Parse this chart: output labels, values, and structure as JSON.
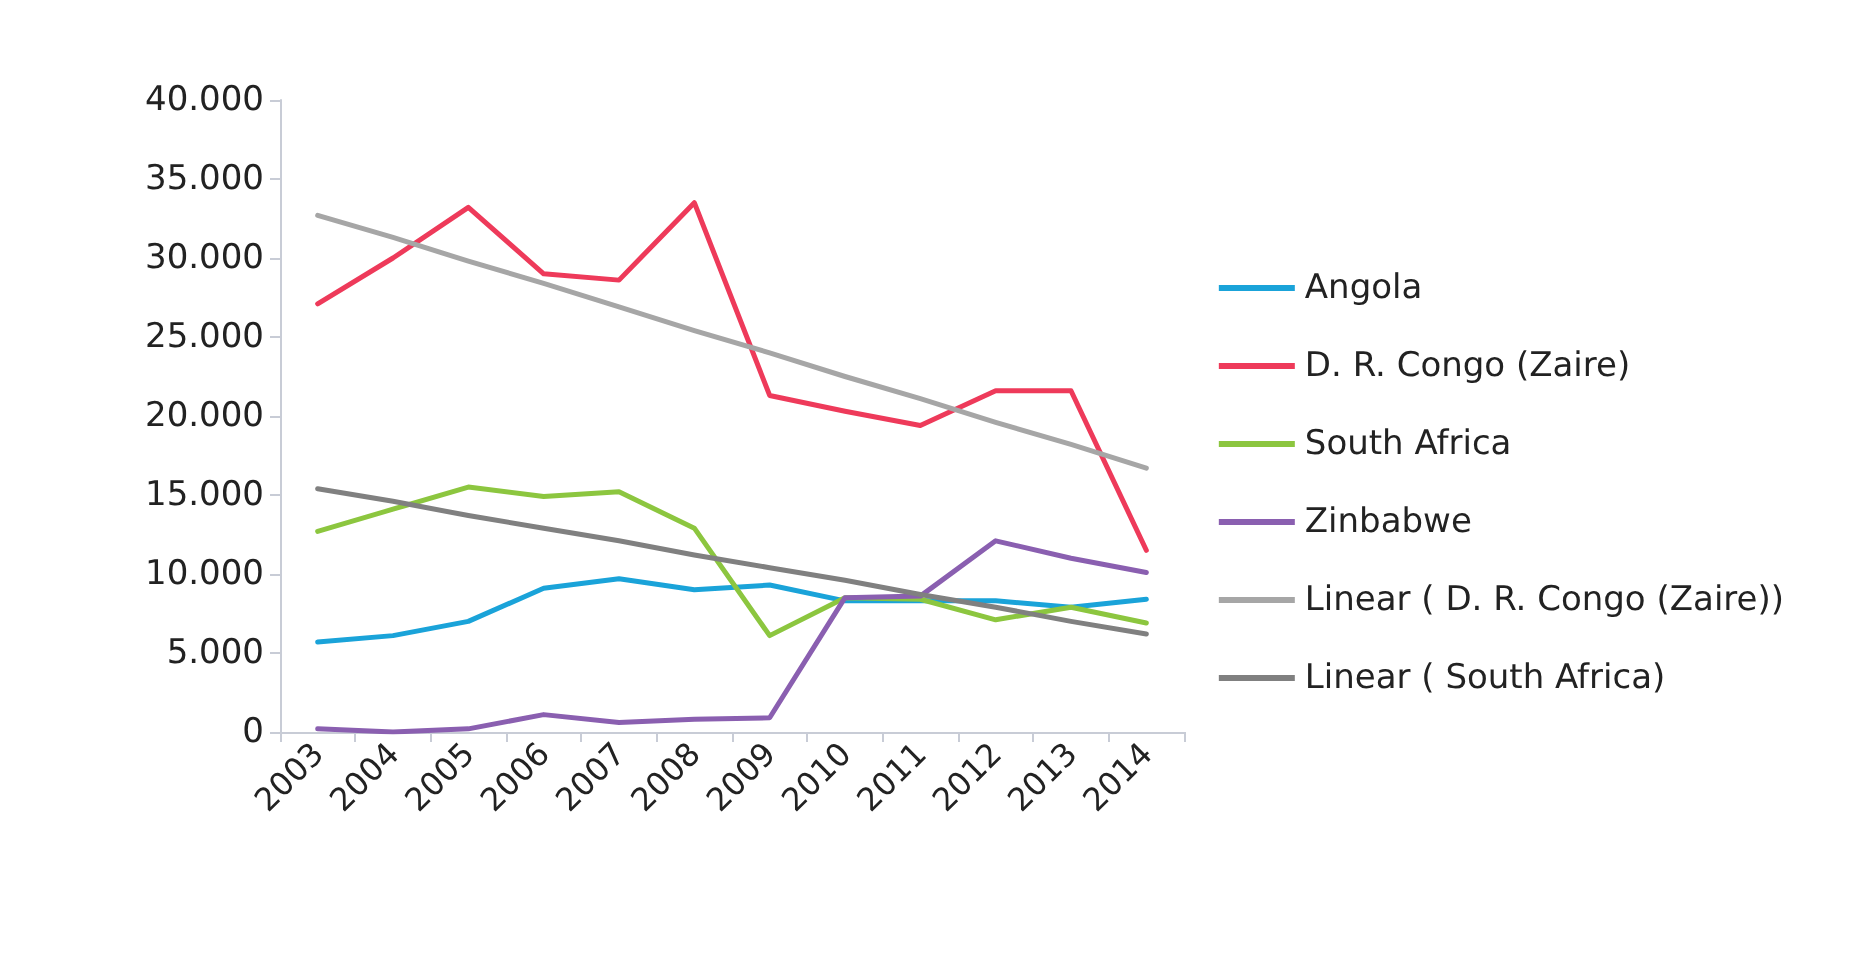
{
  "chart_data": {
    "type": "line",
    "categories": [
      "2003",
      "2004",
      "2005",
      "2006",
      "2007",
      "2008",
      "2009",
      "2010",
      "2011",
      "2012",
      "2013",
      "2014"
    ],
    "series": [
      {
        "name": "Angola",
        "color": "#1aa3d9",
        "values": [
          5700,
          6100,
          7000,
          9100,
          9700,
          9000,
          9300,
          8300,
          8300,
          8300,
          7900,
          8400
        ]
      },
      {
        "name": "D. R. Congo (Zaire)",
        "color": "#ee3a5a",
        "values": [
          27100,
          30000,
          33200,
          29000,
          28600,
          33500,
          21300,
          20300,
          19400,
          21600,
          21600,
          11500
        ]
      },
      {
        "name": "South Africa",
        "color": "#8cc63f",
        "values": [
          12700,
          14100,
          15500,
          14900,
          15200,
          12900,
          6100,
          8500,
          8400,
          7100,
          7900,
          6900
        ]
      },
      {
        "name": "Zinbabwe",
        "color": "#8a5fb0",
        "values": [
          200,
          0,
          200,
          1100,
          600,
          800,
          900,
          8500,
          8600,
          12100,
          11000,
          10100
        ]
      },
      {
        "name": "Linear ( D. R. Congo (Zaire))",
        "color": "#a6a6a6",
        "values": [
          32700,
          31300,
          29800,
          28400,
          26900,
          25400,
          24000,
          22500,
          21100,
          19600,
          18200,
          16700
        ]
      },
      {
        "name": "Linear ( South Africa)",
        "color": "#808080",
        "values": [
          15400,
          14600,
          13700,
          12900,
          12100,
          11200,
          10400,
          9600,
          8700,
          7900,
          7000,
          6200
        ]
      }
    ],
    "ylim": [
      0,
      40000
    ],
    "yticks": [
      {
        "value": 0,
        "label": "0"
      },
      {
        "value": 5000,
        "label": "5.000"
      },
      {
        "value": 10000,
        "label": "10.000"
      },
      {
        "value": 15000,
        "label": "15.000"
      },
      {
        "value": 20000,
        "label": "20.000"
      },
      {
        "value": 25000,
        "label": "25.000"
      },
      {
        "value": 30000,
        "label": "30.000"
      },
      {
        "value": 35000,
        "label": "35.000"
      },
      {
        "value": 40000,
        "label": "40.000"
      }
    ],
    "grid": false,
    "legend": "right",
    "marker": "none",
    "line_style": "solid"
  }
}
